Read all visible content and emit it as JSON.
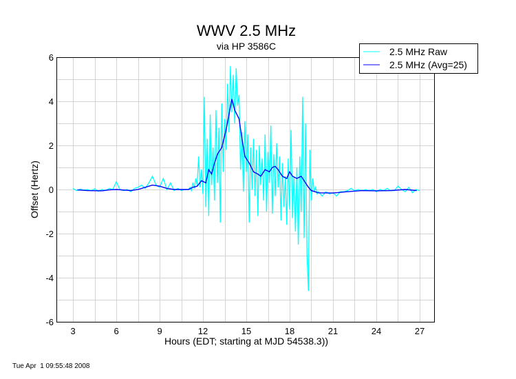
{
  "chart_data": {
    "type": "line",
    "title": "WWV 2.5 MHz",
    "subtitle": "via HP 3586C",
    "xlabel": "Hours (EDT; starting at MJD 54538.3))",
    "ylabel": "Offset (Hertz)",
    "xlim": [
      1.9,
      28.05
    ],
    "ylim": [
      -6,
      6
    ],
    "xticks": [
      3,
      6,
      9,
      12,
      15,
      18,
      21,
      24,
      27
    ],
    "yticks": [
      -6,
      -4,
      -2,
      0,
      2,
      4,
      6
    ],
    "grid": true,
    "grid_x_step": 1.5,
    "grid_y_step": 1,
    "legend_position": "top-right",
    "colors": {
      "raw": "#00ffff",
      "avg": "#0000ff",
      "grid": "#d3d3d3"
    },
    "series": [
      {
        "name": "2.5 MHz Raw",
        "color": "#00ffff",
        "points": [
          [
            3.0,
            0.05
          ],
          [
            3.25,
            -0.05
          ],
          [
            3.5,
            0.02
          ],
          [
            3.75,
            -0.03
          ],
          [
            4.0,
            0.0
          ],
          [
            4.25,
            -0.05
          ],
          [
            4.5,
            0.03
          ],
          [
            4.75,
            -0.08
          ],
          [
            5.0,
            0.0
          ],
          [
            5.25,
            -0.05
          ],
          [
            5.5,
            0.05
          ],
          [
            5.75,
            0.0
          ],
          [
            6.0,
            0.35
          ],
          [
            6.25,
            0.0
          ],
          [
            6.5,
            -0.05
          ],
          [
            6.75,
            0.0
          ],
          [
            7.0,
            -0.1
          ],
          [
            7.25,
            0.05
          ],
          [
            7.5,
            0.1
          ],
          [
            7.75,
            0.2
          ],
          [
            8.0,
            0.05
          ],
          [
            8.25,
            0.3
          ],
          [
            8.5,
            0.6
          ],
          [
            8.75,
            0.2
          ],
          [
            9.0,
            0.1
          ],
          [
            9.25,
            0.5
          ],
          [
            9.5,
            0.0
          ],
          [
            9.75,
            0.3
          ],
          [
            10.0,
            -0.05
          ],
          [
            10.25,
            0.05
          ],
          [
            10.5,
            -0.05
          ],
          [
            10.75,
            0.0
          ],
          [
            11.0,
            0.0
          ],
          [
            11.1,
            0.1
          ],
          [
            11.2,
            -0.05
          ],
          [
            11.3,
            0.3
          ],
          [
            11.4,
            0.05
          ],
          [
            11.5,
            0.5
          ],
          [
            11.6,
            0.2
          ],
          [
            11.7,
            1.5
          ],
          [
            11.8,
            0.1
          ],
          [
            11.9,
            0.9
          ],
          [
            12.0,
            -0.2
          ],
          [
            12.1,
            4.2
          ],
          [
            12.2,
            -0.8
          ],
          [
            12.3,
            2.3
          ],
          [
            12.4,
            -1.2
          ],
          [
            12.5,
            3.4
          ],
          [
            12.6,
            0.2
          ],
          [
            12.7,
            1.9
          ],
          [
            12.8,
            -0.5
          ],
          [
            12.9,
            3.6
          ],
          [
            13.0,
            0.3
          ],
          [
            13.1,
            2.8
          ],
          [
            13.2,
            -1.5
          ],
          [
            13.3,
            3.9
          ],
          [
            13.4,
            0.8
          ],
          [
            13.5,
            3.2
          ],
          [
            13.6,
            1.8
          ],
          [
            13.7,
            4.8
          ],
          [
            13.8,
            2.6
          ],
          [
            13.9,
            5.6
          ],
          [
            14.0,
            3.5
          ],
          [
            14.1,
            5.2
          ],
          [
            14.2,
            3.0
          ],
          [
            14.3,
            5.5
          ],
          [
            14.4,
            3.8
          ],
          [
            14.5,
            4.3
          ],
          [
            14.6,
            0.9
          ],
          [
            14.7,
            2.6
          ],
          [
            14.8,
            -0.1
          ],
          [
            14.9,
            3.1
          ],
          [
            15.0,
            0.8
          ],
          [
            15.1,
            2.5
          ],
          [
            15.2,
            -1.5
          ],
          [
            15.3,
            1.9
          ],
          [
            15.4,
            0.0
          ],
          [
            15.5,
            2.3
          ],
          [
            15.6,
            -0.3
          ],
          [
            15.7,
            1.8
          ],
          [
            15.8,
            -1.2
          ],
          [
            15.9,
            2.0
          ],
          [
            16.0,
            0.2
          ],
          [
            16.1,
            1.4
          ],
          [
            16.2,
            -0.5
          ],
          [
            16.3,
            2.5
          ],
          [
            16.4,
            -1.0
          ],
          [
            16.5,
            1.7
          ],
          [
            16.6,
            0.3
          ],
          [
            16.7,
            2.9
          ],
          [
            16.8,
            -1.1
          ],
          [
            16.9,
            1.6
          ],
          [
            17.0,
            -0.3
          ],
          [
            17.1,
            2.1
          ],
          [
            17.2,
            0.1
          ],
          [
            17.3,
            1.5
          ],
          [
            17.4,
            -1.4
          ],
          [
            17.5,
            1.2
          ],
          [
            17.6,
            -0.8
          ],
          [
            17.7,
            0.6
          ],
          [
            17.8,
            -1.6
          ],
          [
            17.9,
            1.4
          ],
          [
            18.0,
            -0.9
          ],
          [
            18.1,
            2.7
          ],
          [
            18.2,
            -1.3
          ],
          [
            18.3,
            0.6
          ],
          [
            18.4,
            -1.9
          ],
          [
            18.5,
            1.0
          ],
          [
            18.6,
            -2.5
          ],
          [
            18.7,
            1.5
          ],
          [
            18.8,
            -1.0
          ],
          [
            18.9,
            4.2
          ],
          [
            19.0,
            -2.2
          ],
          [
            19.1,
            3.0
          ],
          [
            19.2,
            -3.0
          ],
          [
            19.3,
            -4.6
          ],
          [
            19.4,
            1.8
          ],
          [
            19.5,
            -0.5
          ],
          [
            19.6,
            0.5
          ],
          [
            19.7,
            -0.1
          ],
          [
            19.8,
            0.1
          ],
          [
            19.9,
            -0.2
          ],
          [
            20.0,
            -0.1
          ],
          [
            20.25,
            -0.3
          ],
          [
            20.5,
            -0.1
          ],
          [
            20.75,
            -0.2
          ],
          [
            21.0,
            -0.15
          ],
          [
            21.25,
            -0.3
          ],
          [
            21.5,
            -0.1
          ],
          [
            21.75,
            -0.1
          ],
          [
            22.0,
            -0.05
          ],
          [
            22.25,
            0.05
          ],
          [
            22.5,
            -0.05
          ],
          [
            22.75,
            0.0
          ],
          [
            23.0,
            -0.05
          ],
          [
            23.25,
            0.0
          ],
          [
            23.5,
            -0.05
          ],
          [
            23.75,
            0.0
          ],
          [
            24.0,
            -0.1
          ],
          [
            24.25,
            0.0
          ],
          [
            24.5,
            -0.05
          ],
          [
            24.75,
            0.05
          ],
          [
            25.0,
            -0.05
          ],
          [
            25.25,
            -0.05
          ],
          [
            25.5,
            0.15
          ],
          [
            25.75,
            0.0
          ],
          [
            26.0,
            -0.1
          ],
          [
            26.25,
            0.1
          ],
          [
            26.5,
            -0.15
          ],
          [
            26.75,
            0.0
          ],
          [
            27.0,
            -0.05
          ]
        ]
      },
      {
        "name": "2.5 MHz (Avg=25)",
        "color": "#0000ff",
        "points": [
          [
            3.3,
            -0.02
          ],
          [
            4.0,
            -0.05
          ],
          [
            5.0,
            -0.06
          ],
          [
            5.5,
            -0.02
          ],
          [
            6.0,
            0.0
          ],
          [
            7.0,
            -0.05
          ],
          [
            7.5,
            0.0
          ],
          [
            8.0,
            0.1
          ],
          [
            8.5,
            0.2
          ],
          [
            9.0,
            0.15
          ],
          [
            9.5,
            0.05
          ],
          [
            10.0,
            0.0
          ],
          [
            11.0,
            0.0
          ],
          [
            11.3,
            0.1
          ],
          [
            11.6,
            0.15
          ],
          [
            11.9,
            0.4
          ],
          [
            12.2,
            0.3
          ],
          [
            12.4,
            0.9
          ],
          [
            12.6,
            0.7
          ],
          [
            12.8,
            1.2
          ],
          [
            13.0,
            1.6
          ],
          [
            13.3,
            1.9
          ],
          [
            13.6,
            2.7
          ],
          [
            13.8,
            3.4
          ],
          [
            14.0,
            4.1
          ],
          [
            14.2,
            3.6
          ],
          [
            14.5,
            3.2
          ],
          [
            14.7,
            2.3
          ],
          [
            14.9,
            1.5
          ],
          [
            15.2,
            1.2
          ],
          [
            15.5,
            0.8
          ],
          [
            15.8,
            0.7
          ],
          [
            16.0,
            0.6
          ],
          [
            16.3,
            0.9
          ],
          [
            16.6,
            0.8
          ],
          [
            16.8,
            1.0
          ],
          [
            17.0,
            1.05
          ],
          [
            17.2,
            0.9
          ],
          [
            17.5,
            0.6
          ],
          [
            17.8,
            0.5
          ],
          [
            18.0,
            0.8
          ],
          [
            18.2,
            0.6
          ],
          [
            18.5,
            0.5
          ],
          [
            18.8,
            0.6
          ],
          [
            19.0,
            0.4
          ],
          [
            19.3,
            0.1
          ],
          [
            19.5,
            -0.05
          ],
          [
            20.0,
            -0.15
          ],
          [
            21.0,
            -0.16
          ],
          [
            22.0,
            -0.1
          ],
          [
            23.0,
            -0.05
          ],
          [
            24.0,
            -0.06
          ],
          [
            25.0,
            -0.05
          ],
          [
            26.0,
            0.0
          ],
          [
            26.8,
            -0.05
          ]
        ]
      }
    ]
  },
  "footer": {
    "timestamp": "Tue Apr  1 09:55:48 2008"
  }
}
